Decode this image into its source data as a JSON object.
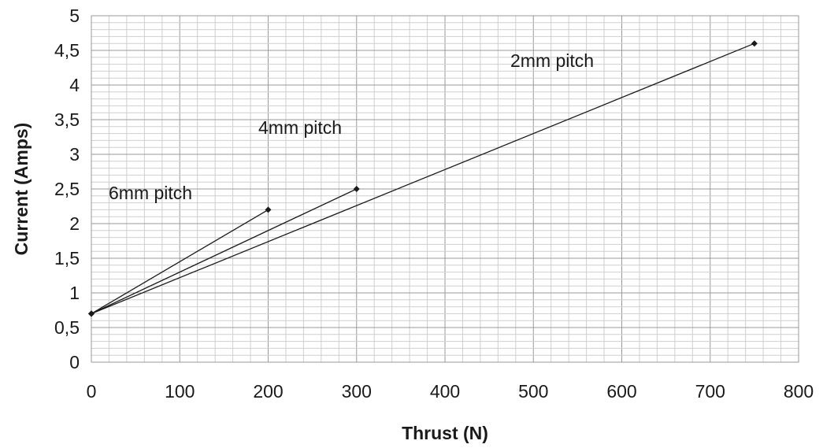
{
  "chart_data": {
    "type": "line",
    "xlabel": "Thrust (N)",
    "ylabel": "Current (Amps)",
    "xlim": [
      0,
      800
    ],
    "ylim": [
      0,
      5
    ],
    "x_ticks": [
      "0",
      "100",
      "200",
      "300",
      "400",
      "500",
      "600",
      "700",
      "800"
    ],
    "y_ticks": [
      "0",
      "0,5",
      "1",
      "1,5",
      "2",
      "2,5",
      "3",
      "3,5",
      "4",
      "4,5",
      "5"
    ],
    "grid": true,
    "marker": "diamond",
    "series": [
      {
        "name": "6mm pitch",
        "x": [
          0,
          200
        ],
        "y": [
          0.7,
          2.2
        ]
      },
      {
        "name": "4mm pitch",
        "x": [
          0,
          300
        ],
        "y": [
          0.7,
          2.5
        ]
      },
      {
        "name": "2mm pitch",
        "x": [
          0,
          750
        ],
        "y": [
          0.7,
          4.6
        ]
      }
    ]
  }
}
